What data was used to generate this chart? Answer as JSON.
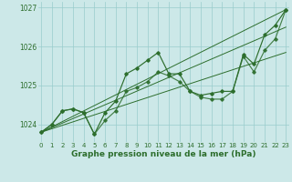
{
  "x": [
    0,
    1,
    2,
    3,
    4,
    5,
    6,
    7,
    8,
    9,
    10,
    11,
    12,
    13,
    14,
    15,
    16,
    17,
    18,
    19,
    20,
    21,
    22,
    23
  ],
  "line1": [
    1023.8,
    1024.0,
    1024.35,
    1024.4,
    1024.3,
    1023.75,
    1024.3,
    1024.6,
    1025.3,
    1025.45,
    1025.65,
    1025.85,
    1025.3,
    1025.3,
    1024.85,
    1024.75,
    1024.8,
    1024.85,
    1024.85,
    1025.8,
    1025.55,
    1026.3,
    1026.55,
    1026.95
  ],
  "line2": [
    1023.8,
    1024.0,
    1024.35,
    1024.4,
    1024.3,
    1023.75,
    1024.1,
    1024.35,
    1024.85,
    1024.95,
    1025.1,
    1025.35,
    1025.25,
    1025.1,
    1024.85,
    1024.7,
    1024.65,
    1024.65,
    1024.85,
    1025.75,
    1025.35,
    1025.9,
    1026.2,
    1026.95
  ],
  "ref_line1": [
    [
      0,
      23
    ],
    [
      1023.8,
      1026.95
    ]
  ],
  "ref_line2": [
    [
      0,
      23
    ],
    [
      1023.8,
      1025.85
    ]
  ],
  "ref_line3": [
    [
      0,
      23
    ],
    [
      1023.8,
      1026.5
    ]
  ],
  "bg_color": "#cce8e8",
  "grid_color": "#99cccc",
  "line_color": "#2d6e2d",
  "yticks": [
    1024,
    1025,
    1026,
    1027
  ],
  "xticks": [
    0,
    1,
    2,
    3,
    4,
    5,
    6,
    7,
    8,
    9,
    10,
    11,
    12,
    13,
    14,
    15,
    16,
    17,
    18,
    19,
    20,
    21,
    22,
    23
  ],
  "xlabel": "Graphe pression niveau de la mer (hPa)",
  "ylim": [
    1023.55,
    1027.15
  ],
  "xlim": [
    -0.3,
    23.3
  ]
}
